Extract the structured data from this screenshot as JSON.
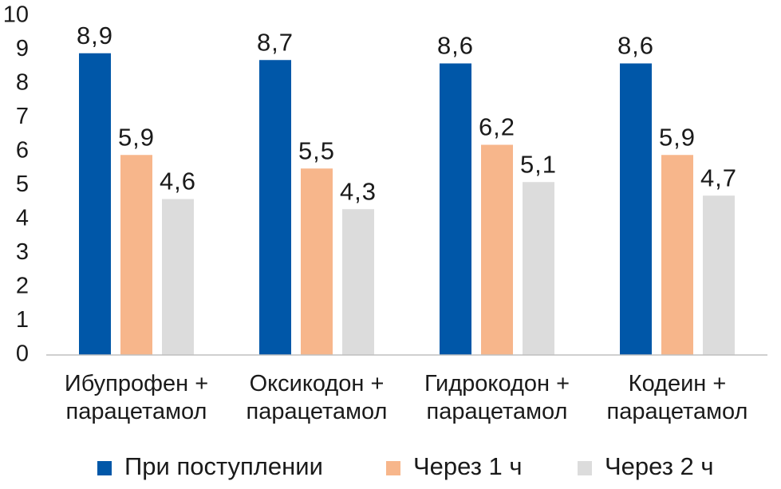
{
  "chart_data": {
    "type": "bar",
    "title": "",
    "xlabel": "",
    "ylabel": "",
    "categories": [
      [
        "Ибупрофен +",
        "парацетамол"
      ],
      [
        "Оксикодон +",
        "парацетамол"
      ],
      [
        "Гидрокодон +",
        "парацетамол"
      ],
      [
        "Кодеин +",
        "парацетамол"
      ]
    ],
    "series": [
      {
        "name": "При поступлении",
        "color": "#0057a8",
        "values": [
          8.9,
          8.7,
          8.6,
          8.6
        ]
      },
      {
        "name": "Через 1 ч",
        "color": "#f7b68b",
        "values": [
          5.9,
          5.5,
          6.2,
          5.9
        ]
      },
      {
        "name": "Через 2 ч",
        "color": "#dcdcdc",
        "values": [
          4.6,
          4.3,
          5.1,
          4.7
        ]
      }
    ],
    "ylim": [
      0,
      10
    ],
    "yticks": [
      0,
      1,
      2,
      3,
      4,
      5,
      6,
      7,
      8,
      9,
      10
    ],
    "decimal_separator": ",",
    "grid": false,
    "legend_position": "bottom"
  }
}
